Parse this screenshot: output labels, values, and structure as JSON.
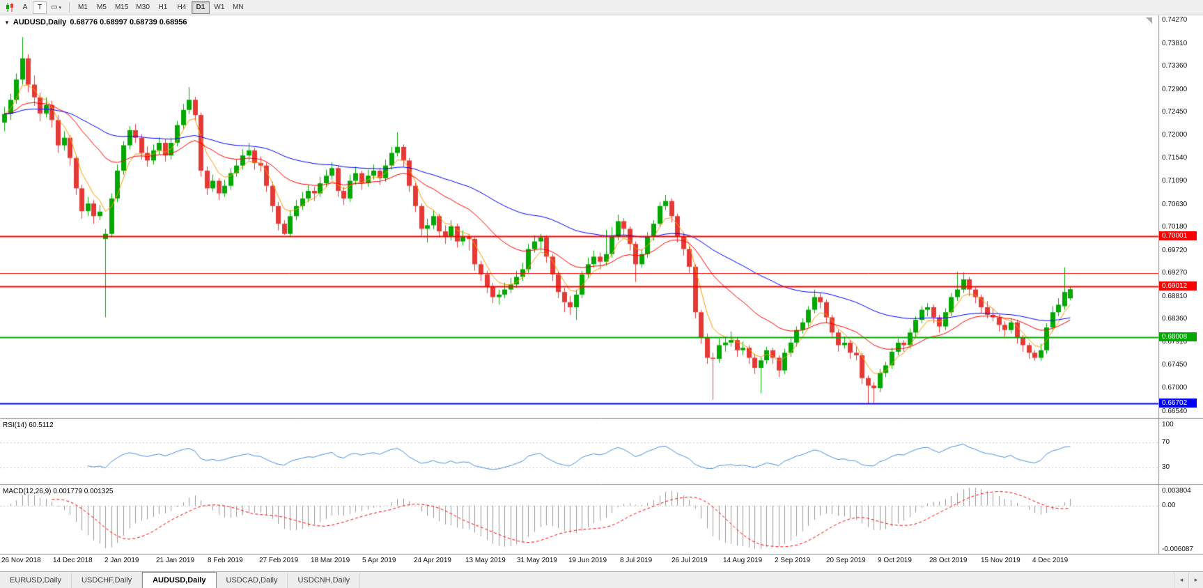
{
  "toolbar": {
    "tool_labels": [
      "A",
      "T"
    ],
    "shapes_glyph": "▭",
    "caret_glyph": "▾",
    "timeframes": [
      "M1",
      "M5",
      "M15",
      "M30",
      "H1",
      "H4",
      "D1",
      "W1",
      "MN"
    ],
    "active_timeframe": "D1"
  },
  "chart": {
    "marker_glyph": "▼",
    "symbol_period": "AUDUSD,Daily",
    "ohlc": "0.68776 0.68997 0.68739 0.68956",
    "open": "0.68776",
    "high": "0.68997",
    "low": "0.68739",
    "close": "0.68956"
  },
  "rsi": {
    "label": "RSI(14) 60.5112",
    "indicator": "RSI",
    "period": 14,
    "value": "60.5112",
    "ticks": [
      {
        "v": 100,
        "label": "100"
      },
      {
        "v": 70,
        "label": "70"
      },
      {
        "v": 30,
        "label": "30"
      }
    ],
    "levels": [
      70,
      30
    ]
  },
  "macd": {
    "label": "MACD(12,26,9) 0.001779 0.001325",
    "fast": 12,
    "slow": 26,
    "signal": 9,
    "macd_value": "0.001779",
    "signal_value": "0.001325",
    "ticks": {
      "top": "0.003804",
      "zero": "0.00",
      "bottom": "-0.006087"
    }
  },
  "tabs": {
    "items": [
      "EURUSD,Daily",
      "USDCHF,Daily",
      "AUDUSD,Daily",
      "USDCAD,Daily",
      "USDCNH,Daily"
    ],
    "active_index": 2,
    "scroll_left_glyph": "◂",
    "scroll_right_glyph": "▸"
  },
  "chart_data": {
    "type": "candlestick",
    "symbol": "AUDUSD",
    "timeframe": "Daily",
    "y_max": 0.7437,
    "y_min": 0.6641,
    "x_start": 6,
    "x_step": 8.55,
    "y_ticks": [
      "0.74270",
      "0.73810",
      "0.73360",
      "0.72900",
      "0.72450",
      "0.72000",
      "0.71540",
      "0.71090",
      "0.70630",
      "0.70180",
      "0.69720",
      "0.69270",
      "0.68810",
      "0.68360",
      "0.67910",
      "0.67450",
      "0.67000",
      "0.66540"
    ],
    "x_labels": [
      "26 Nov 2018",
      "14 Dec 2018",
      "2 Jan 2019",
      "21 Jan 2019",
      "8 Feb 2019",
      "27 Feb 2019",
      "18 Mar 2019",
      "5 Apr 2019",
      "24 Apr 2019",
      "13 May 2019",
      "31 May 2019",
      "19 Jun 2019",
      "8 Jul 2019",
      "26 Jul 2019",
      "14 Aug 2019",
      "2 Sep 2019",
      "20 Sep 2019",
      "9 Oct 2019",
      "28 Oct 2019",
      "15 Nov 2019",
      "4 Dec 2019"
    ],
    "colors": {
      "up": "#00a800",
      "down": "#e53935",
      "ma_fast": "#ff9800",
      "ma_mid": "#ff0000",
      "ma_slow": "#0000ff",
      "rsi": "#4a90d9",
      "macd_hist": "#9a9a9a",
      "macd_signal": "#ff0000",
      "level_dotted": "#c8c8c8",
      "separator": "#909090"
    },
    "overlays": [
      {
        "type": "ema",
        "period": 5,
        "color_key": "ma_fast"
      },
      {
        "type": "ema",
        "period": 21,
        "color_key": "ma_mid"
      },
      {
        "type": "ema",
        "period": 55,
        "color_key": "ma_slow"
      }
    ],
    "hlines": [
      {
        "value": 0.70001,
        "label": "0.70001",
        "color": "#ff0000",
        "width": 2
      },
      {
        "value": 0.6927,
        "label": "",
        "color": "#ff0000",
        "width": 1
      },
      {
        "value": 0.69012,
        "label": "0.69012",
        "color": "#ff0000",
        "width": 2
      },
      {
        "value": 0.68008,
        "label": "0.68008",
        "color": "#00a800",
        "width": 2
      },
      {
        "value": 0.66702,
        "label": "0.66702",
        "color": "#0000ff",
        "width": 2
      }
    ],
    "candles": [
      [
        0.7225,
        0.7256,
        0.7208,
        0.7242
      ],
      [
        0.7242,
        0.7282,
        0.723,
        0.727
      ],
      [
        0.727,
        0.7322,
        0.7262,
        0.731
      ],
      [
        0.731,
        0.7394,
        0.73,
        0.7352
      ],
      [
        0.7352,
        0.736,
        0.7285,
        0.73
      ],
      [
        0.73,
        0.7318,
        0.7258,
        0.7275
      ],
      [
        0.7275,
        0.7284,
        0.7228,
        0.7243
      ],
      [
        0.7243,
        0.7275,
        0.7235,
        0.726
      ],
      [
        0.726,
        0.7268,
        0.7215,
        0.723
      ],
      [
        0.723,
        0.724,
        0.7165,
        0.718
      ],
      [
        0.718,
        0.7208,
        0.717,
        0.7195
      ],
      [
        0.7195,
        0.72,
        0.714,
        0.7155
      ],
      [
        0.7155,
        0.716,
        0.7082,
        0.7095
      ],
      [
        0.7095,
        0.7102,
        0.7035,
        0.705
      ],
      [
        0.705,
        0.7078,
        0.704,
        0.7065
      ],
      [
        0.7065,
        0.7072,
        0.7025,
        0.704
      ],
      [
        0.704,
        0.7062,
        0.7032,
        0.7049
      ],
      [
        0.6995,
        0.7015,
        0.684,
        0.7005
      ],
      [
        0.7005,
        0.7085,
        0.6998,
        0.7075
      ],
      [
        0.7075,
        0.7142,
        0.7068,
        0.713
      ],
      [
        0.713,
        0.7188,
        0.7122,
        0.718
      ],
      [
        0.718,
        0.7218,
        0.7172,
        0.721
      ],
      [
        0.721,
        0.7222,
        0.7185,
        0.7195
      ],
      [
        0.7195,
        0.7202,
        0.7152,
        0.7165
      ],
      [
        0.7165,
        0.7178,
        0.7138,
        0.715
      ],
      [
        0.715,
        0.7182,
        0.7142,
        0.717
      ],
      [
        0.717,
        0.7196,
        0.7162,
        0.7185
      ],
      [
        0.7185,
        0.7192,
        0.7148,
        0.716
      ],
      [
        0.716,
        0.7195,
        0.7152,
        0.7185
      ],
      [
        0.7185,
        0.7228,
        0.7178,
        0.722
      ],
      [
        0.722,
        0.7262,
        0.7212,
        0.725
      ],
      [
        0.725,
        0.7295,
        0.7242,
        0.727
      ],
      [
        0.727,
        0.7276,
        0.7228,
        0.724
      ],
      [
        0.724,
        0.7245,
        0.7118,
        0.713
      ],
      [
        0.713,
        0.7138,
        0.7082,
        0.7095
      ],
      [
        0.7095,
        0.7122,
        0.7088,
        0.711
      ],
      [
        0.711,
        0.7115,
        0.7072,
        0.7085
      ],
      [
        0.7085,
        0.7112,
        0.7078,
        0.71
      ],
      [
        0.71,
        0.7135,
        0.7092,
        0.7125
      ],
      [
        0.7125,
        0.7152,
        0.7118,
        0.714
      ],
      [
        0.714,
        0.7172,
        0.7132,
        0.716
      ],
      [
        0.716,
        0.7185,
        0.715,
        0.717
      ],
      [
        0.717,
        0.7175,
        0.7132,
        0.7145
      ],
      [
        0.7145,
        0.7158,
        0.7128,
        0.714
      ],
      [
        0.714,
        0.7146,
        0.7088,
        0.71
      ],
      [
        0.71,
        0.7108,
        0.7048,
        0.706
      ],
      [
        0.706,
        0.7068,
        0.7012,
        0.7025
      ],
      [
        0.7025,
        0.7032,
        0.7003,
        0.7005
      ],
      [
        0.7005,
        0.7052,
        0.6998,
        0.704
      ],
      [
        0.704,
        0.7072,
        0.7032,
        0.706
      ],
      [
        0.706,
        0.7088,
        0.7052,
        0.7075
      ],
      [
        0.7075,
        0.7102,
        0.7068,
        0.709
      ],
      [
        0.709,
        0.7098,
        0.707,
        0.7085
      ],
      [
        0.7085,
        0.7118,
        0.7078,
        0.7105
      ],
      [
        0.7105,
        0.7132,
        0.7098,
        0.712
      ],
      [
        0.712,
        0.7147,
        0.7112,
        0.7135
      ],
      [
        0.7135,
        0.714,
        0.7078,
        0.709
      ],
      [
        0.709,
        0.7098,
        0.7062,
        0.7075
      ],
      [
        0.7075,
        0.7122,
        0.7068,
        0.711
      ],
      [
        0.711,
        0.7138,
        0.7102,
        0.7125
      ],
      [
        0.7125,
        0.713,
        0.7092,
        0.7105
      ],
      [
        0.7105,
        0.7132,
        0.7098,
        0.712
      ],
      [
        0.712,
        0.7142,
        0.7112,
        0.713
      ],
      [
        0.713,
        0.7136,
        0.7102,
        0.7115
      ],
      [
        0.7115,
        0.7152,
        0.7108,
        0.714
      ],
      [
        0.714,
        0.7177,
        0.7132,
        0.7165
      ],
      [
        0.7165,
        0.7206,
        0.7158,
        0.7177
      ],
      [
        0.7177,
        0.7182,
        0.7138,
        0.715
      ],
      [
        0.715,
        0.7155,
        0.7088,
        0.71
      ],
      [
        0.71,
        0.7106,
        0.7048,
        0.706
      ],
      [
        0.706,
        0.7065,
        0.7002,
        0.7015
      ],
      [
        0.7015,
        0.7035,
        0.6988,
        0.7022
      ],
      [
        0.7022,
        0.7052,
        0.7014,
        0.704
      ],
      [
        0.704,
        0.7045,
        0.6998,
        0.701
      ],
      [
        0.701,
        0.7022,
        0.6985,
        0.7
      ],
      [
        0.7,
        0.7032,
        0.6992,
        0.702
      ],
      [
        0.702,
        0.7025,
        0.6978,
        0.699
      ],
      [
        0.699,
        0.7012,
        0.6982,
        0.7
      ],
      [
        0.7,
        0.7005,
        0.6972,
        0.6995
      ],
      [
        0.6995,
        0.6998,
        0.6932,
        0.6945
      ],
      [
        0.6945,
        0.6952,
        0.6912,
        0.6925
      ],
      [
        0.6925,
        0.6932,
        0.6888,
        0.69
      ],
      [
        0.69,
        0.6908,
        0.6868,
        0.688
      ],
      [
        0.688,
        0.6895,
        0.6865,
        0.6885
      ],
      [
        0.6885,
        0.6908,
        0.6878,
        0.6895
      ],
      [
        0.6895,
        0.6918,
        0.6888,
        0.6905
      ],
      [
        0.6905,
        0.6932,
        0.6898,
        0.692
      ],
      [
        0.692,
        0.6948,
        0.6912,
        0.6935
      ],
      [
        0.6935,
        0.6985,
        0.6928,
        0.6975
      ],
      [
        0.6975,
        0.7002,
        0.6968,
        0.699
      ],
      [
        0.699,
        0.7005,
        0.6972,
        0.6998
      ],
      [
        0.6998,
        0.7002,
        0.6948,
        0.696
      ],
      [
        0.696,
        0.6965,
        0.6912,
        0.6925
      ],
      [
        0.6925,
        0.693,
        0.6878,
        0.689
      ],
      [
        0.689,
        0.6898,
        0.685,
        0.687
      ],
      [
        0.687,
        0.6882,
        0.6845,
        0.686
      ],
      [
        0.686,
        0.6895,
        0.6835,
        0.6885
      ],
      [
        0.6885,
        0.6932,
        0.6878,
        0.6925
      ],
      [
        0.6925,
        0.6958,
        0.6918,
        0.6945
      ],
      [
        0.6945,
        0.6972,
        0.6938,
        0.696
      ],
      [
        0.696,
        0.6968,
        0.6935,
        0.695
      ],
      [
        0.695,
        0.7013,
        0.6942,
        0.6965
      ],
      [
        0.6965,
        0.7018,
        0.6958,
        0.7
      ],
      [
        0.7,
        0.7043,
        0.6992,
        0.703
      ],
      [
        0.703,
        0.7036,
        0.7002,
        0.7015
      ],
      [
        0.7015,
        0.702,
        0.6972,
        0.6985
      ],
      [
        0.6985,
        0.699,
        0.691,
        0.6945
      ],
      [
        0.6945,
        0.6975,
        0.6938,
        0.6965
      ],
      [
        0.6965,
        0.7008,
        0.6958,
        0.7
      ],
      [
        0.7,
        0.7032,
        0.6992,
        0.7025
      ],
      [
        0.7025,
        0.7068,
        0.7018,
        0.706
      ],
      [
        0.706,
        0.7082,
        0.7052,
        0.707
      ],
      [
        0.707,
        0.7075,
        0.7028,
        0.704
      ],
      [
        0.704,
        0.7045,
        0.6988,
        0.7
      ],
      [
        0.7,
        0.7008,
        0.6962,
        0.6975
      ],
      [
        0.6975,
        0.698,
        0.6928,
        0.694
      ],
      [
        0.694,
        0.6945,
        0.6838,
        0.685
      ],
      [
        0.685,
        0.6855,
        0.6788,
        0.68
      ],
      [
        0.68,
        0.6808,
        0.6748,
        0.676
      ],
      [
        0.676,
        0.677,
        0.6677,
        0.6758
      ],
      [
        0.6758,
        0.6798,
        0.675,
        0.6785
      ],
      [
        0.6785,
        0.6802,
        0.6772,
        0.679
      ],
      [
        0.679,
        0.6812,
        0.6782,
        0.6795
      ],
      [
        0.6795,
        0.68,
        0.6762,
        0.6775
      ],
      [
        0.6775,
        0.6792,
        0.6765,
        0.678
      ],
      [
        0.678,
        0.6785,
        0.6748,
        0.676
      ],
      [
        0.676,
        0.6768,
        0.6728,
        0.674
      ],
      [
        0.674,
        0.6762,
        0.669,
        0.6755
      ],
      [
        0.6755,
        0.6782,
        0.6748,
        0.6775
      ],
      [
        0.6775,
        0.678,
        0.6748,
        0.676
      ],
      [
        0.676,
        0.6765,
        0.6722,
        0.6735
      ],
      [
        0.6735,
        0.6778,
        0.6728,
        0.677
      ],
      [
        0.677,
        0.6798,
        0.6762,
        0.679
      ],
      [
        0.679,
        0.6822,
        0.6782,
        0.6815
      ],
      [
        0.6815,
        0.6838,
        0.6808,
        0.683
      ],
      [
        0.683,
        0.6862,
        0.6822,
        0.6855
      ],
      [
        0.6855,
        0.6895,
        0.6848,
        0.688
      ],
      [
        0.688,
        0.6888,
        0.6858,
        0.687
      ],
      [
        0.687,
        0.6875,
        0.6828,
        0.684
      ],
      [
        0.684,
        0.6845,
        0.6798,
        0.681
      ],
      [
        0.681,
        0.6815,
        0.6772,
        0.6785
      ],
      [
        0.6785,
        0.6802,
        0.6778,
        0.679
      ],
      [
        0.679,
        0.6795,
        0.6758,
        0.677
      ],
      [
        0.677,
        0.6782,
        0.6755,
        0.6765
      ],
      [
        0.6765,
        0.677,
        0.6708,
        0.672
      ],
      [
        0.672,
        0.6725,
        0.667,
        0.6705
      ],
      [
        0.6705,
        0.6712,
        0.6671,
        0.67
      ],
      [
        0.67,
        0.6738,
        0.6692,
        0.673
      ],
      [
        0.673,
        0.6752,
        0.6722,
        0.6745
      ],
      [
        0.6745,
        0.678,
        0.6738,
        0.6772
      ],
      [
        0.6772,
        0.6798,
        0.6765,
        0.679
      ],
      [
        0.679,
        0.6795,
        0.6772,
        0.6785
      ],
      [
        0.6785,
        0.6818,
        0.6778,
        0.681
      ],
      [
        0.681,
        0.6842,
        0.6802,
        0.6835
      ],
      [
        0.6835,
        0.6862,
        0.6828,
        0.6855
      ],
      [
        0.6855,
        0.6868,
        0.6842,
        0.686
      ],
      [
        0.686,
        0.6865,
        0.6828,
        0.684
      ],
      [
        0.684,
        0.6845,
        0.681,
        0.6822
      ],
      [
        0.6822,
        0.6858,
        0.6815,
        0.685
      ],
      [
        0.685,
        0.6888,
        0.6842,
        0.688
      ],
      [
        0.688,
        0.693,
        0.6872,
        0.6895
      ],
      [
        0.6895,
        0.6929,
        0.6888,
        0.6915
      ],
      [
        0.6915,
        0.692,
        0.6882,
        0.6895
      ],
      [
        0.6895,
        0.69,
        0.6868,
        0.688
      ],
      [
        0.688,
        0.6885,
        0.6848,
        0.686
      ],
      [
        0.686,
        0.6872,
        0.6838,
        0.6845
      ],
      [
        0.6845,
        0.6858,
        0.6832,
        0.684
      ],
      [
        0.684,
        0.6846,
        0.6812,
        0.6825
      ],
      [
        0.6825,
        0.6832,
        0.6802,
        0.6815
      ],
      [
        0.6815,
        0.6838,
        0.6808,
        0.683
      ],
      [
        0.683,
        0.6835,
        0.6788,
        0.68
      ],
      [
        0.68,
        0.6805,
        0.6772,
        0.6785
      ],
      [
        0.6785,
        0.679,
        0.6758,
        0.677
      ],
      [
        0.677,
        0.6775,
        0.6754,
        0.676
      ],
      [
        0.676,
        0.6788,
        0.6754,
        0.6775
      ],
      [
        0.6775,
        0.6828,
        0.6768,
        0.682
      ],
      [
        0.682,
        0.6862,
        0.6812,
        0.685
      ],
      [
        0.685,
        0.6878,
        0.6842,
        0.6865
      ],
      [
        0.6862,
        0.6939,
        0.6855,
        0.689
      ],
      [
        0.68776,
        0.68997,
        0.68739,
        0.68956
      ]
    ]
  }
}
